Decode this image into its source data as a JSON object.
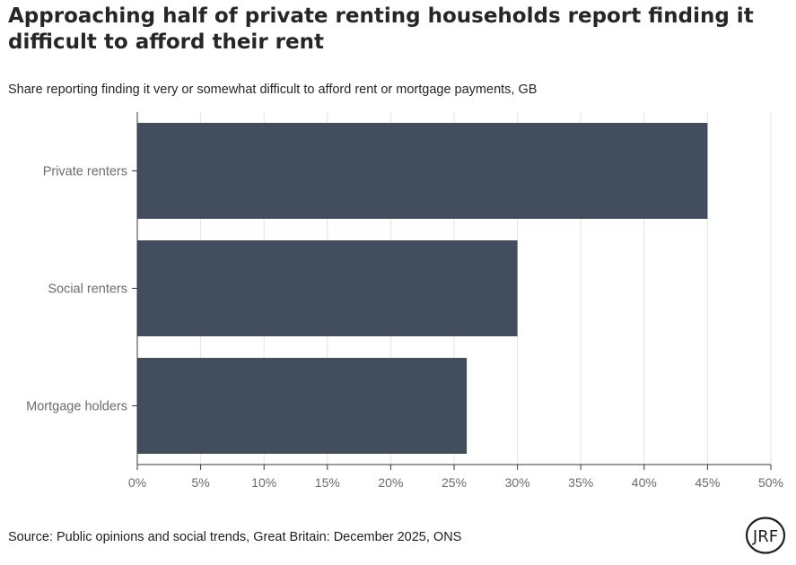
{
  "header": {
    "title": "Approaching half of private renting households report finding it difficult to afford their rent",
    "subtitle": "Share reporting finding it very or somewhat difficult to afford rent or mortgage payments, GB"
  },
  "footer": {
    "source": "Source: Public opinions and social trends, Great Britain: December 2025, ONS",
    "logo_text": "JRF"
  },
  "colors": {
    "bar": "#424e5d",
    "grid": "#e3e3e3",
    "axis": "#3a3a3a",
    "tick_text": "#6b6b6b"
  },
  "chart_data": {
    "type": "bar",
    "orientation": "horizontal",
    "categories": [
      "Private renters",
      "Social renters",
      "Mortgage holders"
    ],
    "values": [
      45,
      30,
      26
    ],
    "x_unit": "%",
    "xlim": [
      0,
      50
    ],
    "x_ticks": [
      0,
      5,
      10,
      15,
      20,
      25,
      30,
      35,
      40,
      45,
      50
    ],
    "x_tick_labels": [
      "0%",
      "5%",
      "10%",
      "15%",
      "20%",
      "25%",
      "30%",
      "35%",
      "40%",
      "45%",
      "50%"
    ],
    "grid": "vertical"
  }
}
